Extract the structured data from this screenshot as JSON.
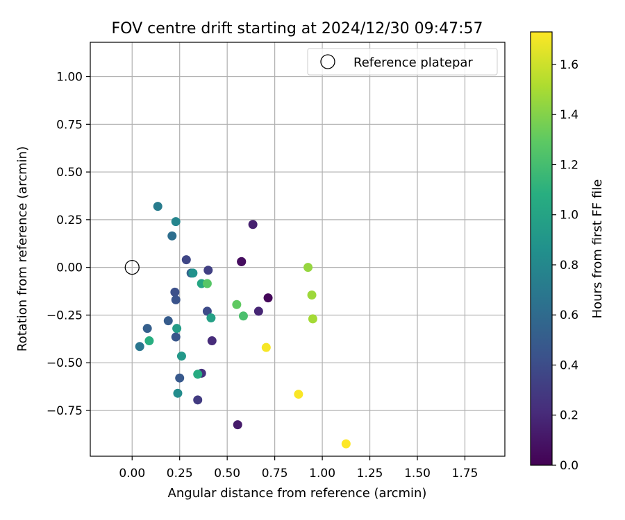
{
  "chart_data": {
    "type": "scatter",
    "title": "FOV centre drift starting at 2024/12/30 09:47:57",
    "xlabel": "Angular distance from reference (arcmin)",
    "ylabel": "Rotation from reference (arcmin)",
    "xlim": [
      -0.22,
      1.96
    ],
    "ylim": [
      -0.99,
      1.18
    ],
    "xticks": [
      0.0,
      0.25,
      0.5,
      0.75,
      1.0,
      1.25,
      1.5,
      1.75
    ],
    "xtick_labels": [
      "0.00",
      "0.25",
      "0.50",
      "0.75",
      "1.00",
      "1.25",
      "1.50",
      "1.75"
    ],
    "yticks": [
      1.0,
      0.75,
      0.5,
      0.25,
      0.0,
      -0.25,
      -0.5,
      -0.75
    ],
    "ytick_labels": [
      "1.00",
      "0.75",
      "0.50",
      "0.25",
      "0.00",
      "−0.25",
      "−0.50",
      "−0.75"
    ],
    "grid": true,
    "legend": {
      "position": "top-right",
      "entries": [
        "Reference platepar"
      ]
    },
    "reference_point": {
      "x": 0.0,
      "y": 0.0
    },
    "colorbar": {
      "label": "Hours from first FF file",
      "range": [
        0.0,
        1.73
      ],
      "ticks": [
        0.0,
        0.2,
        0.4,
        0.6,
        0.8,
        1.0,
        1.2,
        1.4,
        1.6
      ],
      "tick_labels": [
        "0.0",
        "0.2",
        "0.4",
        "0.6",
        "0.8",
        "1.0",
        "1.2",
        "1.4",
        "1.6"
      ],
      "colormap": "viridis"
    },
    "points": [
      {
        "x": 0.575,
        "y": 0.03,
        "c": 0.0
      },
      {
        "x": 0.715,
        "y": -0.16,
        "c": 0.03
      },
      {
        "x": 0.575,
        "y": 0.03,
        "c": 0.06
      },
      {
        "x": 0.555,
        "y": -0.825,
        "c": 0.13
      },
      {
        "x": 0.635,
        "y": 0.225,
        "c": 0.15
      },
      {
        "x": 0.665,
        "y": -0.23,
        "c": 0.18
      },
      {
        "x": 0.42,
        "y": -0.385,
        "c": 0.21
      },
      {
        "x": 0.365,
        "y": -0.555,
        "c": 0.25
      },
      {
        "x": 0.345,
        "y": -0.695,
        "c": 0.3
      },
      {
        "x": 0.4,
        "y": -0.015,
        "c": 0.33
      },
      {
        "x": 0.285,
        "y": 0.04,
        "c": 0.36
      },
      {
        "x": 0.395,
        "y": -0.23,
        "c": 0.39
      },
      {
        "x": 0.225,
        "y": -0.13,
        "c": 0.42
      },
      {
        "x": 0.23,
        "y": -0.17,
        "c": 0.44
      },
      {
        "x": 0.23,
        "y": -0.365,
        "c": 0.46
      },
      {
        "x": 0.25,
        "y": -0.58,
        "c": 0.48
      },
      {
        "x": 0.19,
        "y": -0.28,
        "c": 0.5
      },
      {
        "x": 0.08,
        "y": -0.32,
        "c": 0.52
      },
      {
        "x": 0.31,
        "y": -0.03,
        "c": 0.55
      },
      {
        "x": 0.21,
        "y": 0.165,
        "c": 0.62
      },
      {
        "x": 0.04,
        "y": -0.415,
        "c": 0.68
      },
      {
        "x": 0.135,
        "y": 0.32,
        "c": 0.72
      },
      {
        "x": 0.23,
        "y": 0.24,
        "c": 0.78
      },
      {
        "x": 0.24,
        "y": -0.66,
        "c": 0.83
      },
      {
        "x": 0.32,
        "y": -0.03,
        "c": 0.87
      },
      {
        "x": 0.26,
        "y": -0.465,
        "c": 0.92
      },
      {
        "x": 0.235,
        "y": -0.32,
        "c": 0.95
      },
      {
        "x": 0.415,
        "y": -0.265,
        "c": 0.98
      },
      {
        "x": 0.365,
        "y": -0.085,
        "c": 1.02
      },
      {
        "x": 0.345,
        "y": -0.56,
        "c": 1.06
      },
      {
        "x": 0.09,
        "y": -0.385,
        "c": 1.08
      },
      {
        "x": 0.585,
        "y": -0.255,
        "c": 1.22
      },
      {
        "x": 0.395,
        "y": -0.085,
        "c": 1.27
      },
      {
        "x": 0.55,
        "y": -0.195,
        "c": 1.3
      },
      {
        "x": 0.925,
        "y": 0.0,
        "c": 1.45
      },
      {
        "x": 0.945,
        "y": -0.145,
        "c": 1.47
      },
      {
        "x": 0.95,
        "y": -0.27,
        "c": 1.49
      },
      {
        "x": 0.705,
        "y": -0.42,
        "c": 1.71
      },
      {
        "x": 0.875,
        "y": -0.665,
        "c": 1.72
      },
      {
        "x": 1.125,
        "y": -0.925,
        "c": 1.73
      }
    ]
  }
}
